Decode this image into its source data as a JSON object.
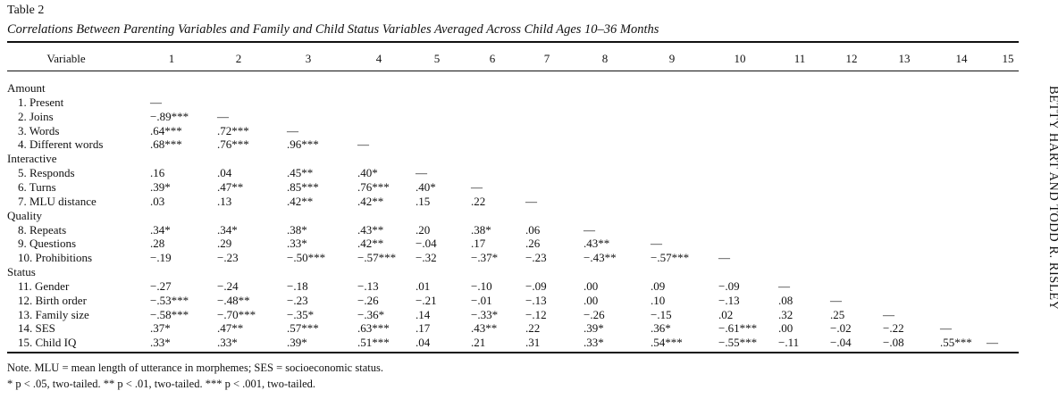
{
  "table": {
    "title": "Table 2",
    "subtitle": "Correlations Between Parenting Variables and Family and Child Status Variables Averaged Across Child Ages 10–36 Months",
    "variable_header": "Variable",
    "columns": [
      "1",
      "2",
      "3",
      "4",
      "5",
      "6",
      "7",
      "8",
      "9",
      "10",
      "11",
      "12",
      "13",
      "14",
      "15"
    ],
    "groups": [
      {
        "label": "Amount",
        "rows": [
          {
            "label": "1. Present",
            "cells": [
              "—"
            ]
          },
          {
            "label": "2. Joins",
            "cells": [
              "−.89***",
              "—"
            ]
          },
          {
            "label": "3. Words",
            "cells": [
              ".64***",
              ".72***",
              "—"
            ]
          },
          {
            "label": "4. Different words",
            "cells": [
              ".68***",
              ".76***",
              ".96***",
              "—"
            ]
          }
        ]
      },
      {
        "label": "Interactive",
        "rows": [
          {
            "label": "5. Responds",
            "cells": [
              ".16",
              ".04",
              ".45**",
              ".40*",
              "—"
            ]
          },
          {
            "label": "6. Turns",
            "cells": [
              ".39*",
              ".47**",
              ".85***",
              ".76***",
              ".40*",
              "—"
            ]
          },
          {
            "label": "7. MLU distance",
            "cells": [
              ".03",
              ".13",
              ".42**",
              ".42**",
              ".15",
              ".22",
              "—"
            ]
          }
        ]
      },
      {
        "label": "Quality",
        "rows": [
          {
            "label": "8. Repeats",
            "cells": [
              ".34*",
              ".34*",
              ".38*",
              ".43**",
              ".20",
              ".38*",
              ".06",
              "—"
            ]
          },
          {
            "label": "9. Questions",
            "cells": [
              ".28",
              ".29",
              ".33*",
              ".42**",
              "−.04",
              ".17",
              ".26",
              ".43**",
              "—"
            ]
          },
          {
            "label": "10. Prohibitions",
            "cells": [
              "−.19",
              "−.23",
              "−.50***",
              "−.57***",
              "−.32",
              "−.37*",
              "−.23",
              "−.43**",
              "−.57***",
              "—"
            ]
          }
        ]
      },
      {
        "label": "Status",
        "rows": [
          {
            "label": "11. Gender",
            "cells": [
              "−.27",
              "−.24",
              "−.18",
              "−.13",
              ".01",
              "−.10",
              "−.09",
              ".00",
              ".09",
              "−.09",
              "—"
            ]
          },
          {
            "label": "12. Birth order",
            "cells": [
              "−.53***",
              "−.48**",
              "−.23",
              "−.26",
              "−.21",
              "−.01",
              "−.13",
              ".00",
              ".10",
              "−.13",
              ".08",
              "—"
            ]
          },
          {
            "label": "13. Family size",
            "cells": [
              "−.58***",
              "−.70***",
              "−.35*",
              "−.36*",
              ".14",
              "−.33*",
              "−.12",
              "−.26",
              "−.15",
              ".02",
              ".32",
              ".25",
              "—"
            ]
          },
          {
            "label": "14. SES",
            "cells": [
              ".37*",
              ".47**",
              ".57***",
              ".63***",
              ".17",
              ".43**",
              ".22",
              ".39*",
              ".36*",
              "−.61***",
              ".00",
              "−.02",
              "−.22",
              "—"
            ]
          },
          {
            "label": "15. Child IQ",
            "cells": [
              ".33*",
              ".33*",
              ".39*",
              ".51***",
              ".04",
              ".21",
              ".31",
              ".33*",
              ".54***",
              "−.55***",
              "−.11",
              "−.04",
              "−.08",
              ".55***",
              "—"
            ]
          }
        ]
      }
    ],
    "note_line1": "Note.  MLU = mean length of utterance in morphemes; SES = socioeconomic status.",
    "note_line2": "* p < .05, two-tailed.   ** p < .01, two-tailed.   *** p < .001, two-tailed."
  },
  "side_running_head": "BETTY HART AND TODD R. RISLEY"
}
